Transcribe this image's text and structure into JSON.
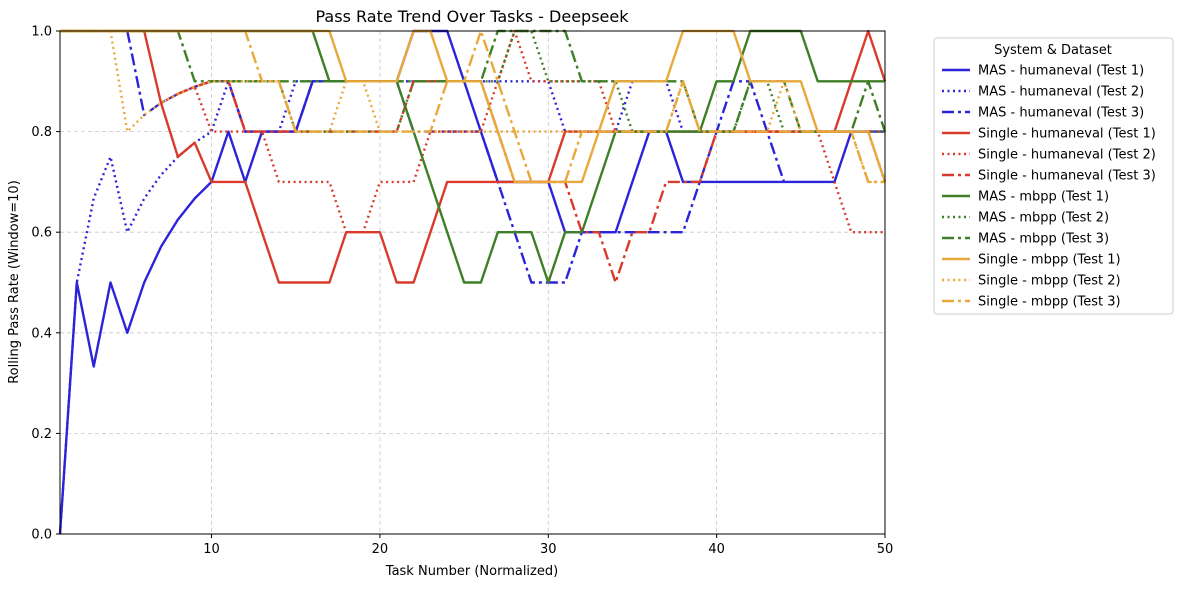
{
  "chart_data": {
    "type": "line",
    "title": "Pass Rate Trend Over Tasks - Deepseek",
    "xlabel": "Task Number (Normalized)",
    "ylabel": "Rolling Pass Rate (Window=10)",
    "xlim": [
      1,
      50
    ],
    "ylim": [
      0,
      1.0
    ],
    "xticks": [
      10,
      20,
      30,
      40,
      50
    ],
    "yticks": [
      0.0,
      0.2,
      0.4,
      0.6,
      0.8,
      1.0
    ],
    "grid": true,
    "legend": {
      "title": "System & Dataset",
      "placement": "outside-right"
    },
    "series": [
      {
        "name": "MAS - humaneval (Test 1)",
        "color": "#2b24d9",
        "style": "solid",
        "x": [
          1,
          2,
          3,
          4,
          5,
          6,
          7,
          8,
          9,
          10,
          11,
          12,
          13,
          14,
          15,
          16,
          17,
          18,
          19,
          20,
          21,
          22,
          23,
          24,
          25,
          26,
          27,
          28,
          29,
          30,
          31,
          32,
          33,
          34,
          35,
          36,
          37,
          38,
          39,
          40,
          41,
          42,
          43,
          44,
          45,
          46,
          47,
          48,
          49,
          50
        ],
        "y": [
          0,
          0.5,
          0.333,
          0.5,
          0.4,
          0.5,
          0.571,
          0.625,
          0.667,
          0.7,
          0.8,
          0.7,
          0.8,
          0.8,
          0.8,
          0.9,
          0.9,
          0.9,
          0.9,
          0.9,
          0.9,
          1.0,
          1.0,
          1.0,
          0.9,
          0.8,
          0.7,
          0.7,
          0.7,
          0.7,
          0.6,
          0.6,
          0.6,
          0.6,
          0.7,
          0.8,
          0.8,
          0.7,
          0.7,
          0.7,
          0.7,
          0.7,
          0.7,
          0.7,
          0.7,
          0.7,
          0.7,
          0.8,
          0.8,
          0.8
        ]
      },
      {
        "name": "MAS - humaneval (Test 2)",
        "color": "#2b24d9",
        "style": "dotted",
        "x": [
          1,
          2,
          3,
          4,
          5,
          6,
          7,
          8,
          9,
          10,
          11,
          12,
          13,
          14,
          15,
          16,
          17,
          18,
          19,
          20,
          21,
          22,
          23,
          24,
          25,
          26,
          27,
          28,
          29,
          30,
          31,
          32,
          33,
          34,
          35,
          36,
          37,
          38,
          39,
          40,
          41,
          42,
          43,
          44,
          45,
          46,
          47,
          48,
          49,
          50
        ],
        "y": [
          0,
          0.5,
          0.667,
          0.75,
          0.6,
          0.667,
          0.714,
          0.75,
          0.778,
          0.8,
          0.9,
          0.8,
          0.8,
          0.8,
          0.9,
          0.9,
          0.9,
          0.9,
          0.9,
          0.9,
          0.9,
          0.9,
          0.9,
          0.9,
          0.9,
          0.9,
          0.9,
          0.9,
          0.9,
          0.9,
          0.8,
          0.8,
          0.8,
          0.8,
          0.9,
          0.9,
          0.9,
          0.8,
          0.8,
          0.8,
          0.8,
          0.8,
          0.8,
          0.8,
          0.8,
          0.8,
          0.8,
          0.8,
          0.8,
          0.7
        ]
      },
      {
        "name": "MAS - humaneval (Test 3)",
        "color": "#2b24d9",
        "style": "dashdot",
        "x": [
          5,
          6,
          7,
          8,
          9,
          10,
          11,
          12,
          13,
          14,
          15,
          16,
          17,
          18,
          19,
          20,
          21,
          22,
          23,
          24,
          25,
          26,
          27,
          28,
          29,
          30,
          31,
          32,
          33,
          34,
          35,
          36,
          37,
          38,
          39,
          40,
          41,
          42,
          43,
          44
        ],
        "y": [
          1.0,
          0.833,
          0.857,
          0.875,
          0.889,
          0.9,
          0.9,
          0.8,
          0.8,
          0.8,
          0.8,
          0.9,
          0.9,
          0.9,
          0.9,
          0.9,
          0.9,
          0.8,
          0.8,
          0.8,
          0.8,
          0.8,
          0.7,
          0.6,
          0.5,
          0.5,
          0.5,
          0.6,
          0.6,
          0.6,
          0.6,
          0.6,
          0.6,
          0.6,
          0.7,
          0.8,
          0.9,
          0.9,
          0.8,
          0.7
        ]
      },
      {
        "name": "Single - humaneval (Test 1)",
        "color": "#d93a2b",
        "style": "solid",
        "x": [
          5,
          6,
          7,
          8,
          9,
          10,
          11,
          12,
          13,
          14,
          15,
          16,
          17,
          18,
          19,
          20,
          21,
          22,
          23,
          24,
          25,
          26,
          27,
          28,
          29,
          30,
          31,
          32,
          33,
          34,
          35,
          36,
          37,
          38,
          39,
          40,
          41,
          42,
          43,
          44,
          45,
          46,
          47,
          48,
          49,
          50
        ],
        "y": [
          1.0,
          1.0,
          0.857,
          0.75,
          0.778,
          0.7,
          0.7,
          0.7,
          0.6,
          0.5,
          0.5,
          0.5,
          0.5,
          0.6,
          0.6,
          0.6,
          0.5,
          0.5,
          0.6,
          0.7,
          0.7,
          0.7,
          0.7,
          0.7,
          0.7,
          0.7,
          0.8,
          0.8,
          0.8,
          0.8,
          0.8,
          0.8,
          0.8,
          0.8,
          0.8,
          0.8,
          0.8,
          0.8,
          0.8,
          0.8,
          0.8,
          0.8,
          0.8,
          0.9,
          1.0,
          0.9
        ]
      },
      {
        "name": "Single - humaneval (Test 2)",
        "color": "#d93a2b",
        "style": "dotted",
        "x": [
          7,
          8,
          9,
          10,
          11,
          12,
          13,
          14,
          15,
          16,
          17,
          18,
          19,
          20,
          21,
          22,
          23,
          24,
          25,
          26,
          27,
          28,
          29,
          30,
          31,
          32,
          33,
          34,
          35,
          36,
          37,
          38,
          39,
          40,
          41,
          42,
          43,
          44,
          45,
          46,
          47,
          48,
          49,
          50
        ],
        "y": [
          0.857,
          0.875,
          0.889,
          0.8,
          0.8,
          0.8,
          0.8,
          0.7,
          0.7,
          0.7,
          0.7,
          0.6,
          0.6,
          0.7,
          0.7,
          0.7,
          0.8,
          0.8,
          0.8,
          0.8,
          0.9,
          1.0,
          0.9,
          0.9,
          0.9,
          0.9,
          0.9,
          0.8,
          0.8,
          0.8,
          0.8,
          0.8,
          0.8,
          0.8,
          0.8,
          0.8,
          0.8,
          0.8,
          0.8,
          0.8,
          0.7,
          0.6,
          0.6,
          0.6
        ]
      },
      {
        "name": "Single - humaneval (Test 3)",
        "color": "#d93a2b",
        "style": "dashdot",
        "x": [
          8,
          9,
          10,
          11,
          12,
          13,
          14,
          15,
          16,
          17,
          18,
          19,
          20,
          21,
          22,
          23,
          24,
          25,
          26,
          27,
          28,
          29,
          30,
          31,
          32,
          33,
          34,
          35,
          36,
          37,
          38,
          39,
          40,
          41,
          42,
          43,
          44,
          45,
          46,
          47,
          48,
          49,
          50
        ],
        "y": [
          0.875,
          0.889,
          0.9,
          0.9,
          0.8,
          0.8,
          0.8,
          0.8,
          0.8,
          0.8,
          0.8,
          0.8,
          0.8,
          0.8,
          0.9,
          0.9,
          0.9,
          0.9,
          0.9,
          0.8,
          0.7,
          0.7,
          0.7,
          0.7,
          0.6,
          0.6,
          0.5,
          0.6,
          0.6,
          0.7,
          0.7,
          0.7,
          0.8,
          0.8,
          0.8,
          0.8,
          0.8,
          0.8,
          0.8,
          0.8,
          0.8,
          0.8,
          0.8
        ]
      },
      {
        "name": "MAS - mbpp (Test 1)",
        "color": "#3f7f27",
        "style": "solid",
        "x": [
          1,
          2,
          3,
          4,
          5,
          6,
          7,
          8,
          9,
          10,
          11,
          12,
          13,
          14,
          15,
          16,
          17,
          18,
          19,
          20,
          21,
          22,
          23,
          24,
          25,
          26,
          27,
          28,
          29,
          30,
          31,
          32,
          33,
          34,
          35,
          36,
          37,
          38,
          39,
          40,
          41,
          42,
          43,
          44,
          45,
          46,
          47,
          48,
          49,
          50
        ],
        "y": [
          1.0,
          1.0,
          1.0,
          1.0,
          1.0,
          1.0,
          1.0,
          1.0,
          1.0,
          1.0,
          1.0,
          1.0,
          1.0,
          1.0,
          1.0,
          1.0,
          0.9,
          0.9,
          0.9,
          0.9,
          0.9,
          0.8,
          0.7,
          0.6,
          0.5,
          0.5,
          0.6,
          0.6,
          0.6,
          0.5,
          0.6,
          0.6,
          0.7,
          0.8,
          0.8,
          0.8,
          0.8,
          0.8,
          0.8,
          0.9,
          0.9,
          1.0,
          1.0,
          1.0,
          1.0,
          0.9,
          0.9,
          0.9,
          0.9,
          0.9
        ]
      },
      {
        "name": "MAS - mbpp (Test 2)",
        "color": "#3f7f27",
        "style": "dotted",
        "x": [
          10,
          11,
          12,
          13,
          14,
          15,
          16,
          17,
          18,
          19,
          20,
          21,
          22,
          23,
          24,
          25,
          26,
          27,
          28,
          29,
          30,
          31,
          32,
          33,
          34,
          35,
          36,
          37,
          38,
          39,
          40,
          41,
          42,
          43,
          44,
          45,
          46,
          47,
          48,
          49,
          50
        ],
        "y": [
          0.9,
          0.9,
          0.9,
          0.9,
          0.9,
          0.8,
          0.8,
          0.8,
          0.8,
          0.8,
          0.8,
          0.8,
          0.9,
          0.9,
          0.9,
          0.9,
          0.9,
          0.9,
          1.0,
          1.0,
          0.9,
          0.9,
          0.9,
          0.9,
          0.9,
          0.8,
          0.8,
          0.8,
          0.8,
          0.8,
          0.8,
          0.8,
          0.9,
          0.9,
          0.8,
          0.8,
          0.8,
          0.8,
          0.8,
          0.8,
          0.8
        ]
      },
      {
        "name": "MAS - mbpp (Test 3)",
        "color": "#3f7f27",
        "style": "dashdot",
        "x": [
          1,
          2,
          3,
          4,
          5,
          6,
          7,
          8,
          9,
          10,
          11,
          12,
          13,
          14,
          15,
          16,
          17,
          18,
          19,
          20,
          21,
          22,
          23,
          24,
          25,
          26,
          27,
          28,
          29,
          30,
          31,
          32,
          33,
          34,
          35,
          36,
          37,
          38,
          39,
          40,
          41,
          42,
          43,
          44,
          45,
          46,
          47,
          48,
          49,
          50
        ],
        "y": [
          1.0,
          1.0,
          1.0,
          1.0,
          1.0,
          1.0,
          1.0,
          1.0,
          0.9,
          0.9,
          0.9,
          0.9,
          0.9,
          0.9,
          0.9,
          0.9,
          0.9,
          0.9,
          0.9,
          0.9,
          0.9,
          0.9,
          0.9,
          0.9,
          0.9,
          0.9,
          1.0,
          1.0,
          1.0,
          1.0,
          1.0,
          0.9,
          0.9,
          0.9,
          0.9,
          0.9,
          0.9,
          0.9,
          0.8,
          0.8,
          0.8,
          0.9,
          0.9,
          0.9,
          0.8,
          0.8,
          0.8,
          0.8,
          0.9,
          0.8
        ]
      },
      {
        "name": "Single - mbpp (Test 1)",
        "color": "#e8a83a",
        "style": "solid",
        "x": [
          1,
          2,
          3,
          4,
          5,
          6,
          7,
          8,
          9,
          10,
          11,
          12,
          13,
          14,
          15,
          16,
          17,
          18,
          19,
          20,
          21,
          22,
          23,
          24,
          25,
          26,
          27,
          28,
          29,
          30,
          31,
          32,
          33,
          34,
          35,
          36,
          37,
          38,
          39,
          40,
          41,
          42,
          43,
          44,
          45,
          46,
          47,
          48,
          49,
          50
        ],
        "y": [
          1.0,
          1.0,
          1.0,
          1.0,
          1.0,
          1.0,
          1.0,
          1.0,
          1.0,
          1.0,
          1.0,
          1.0,
          1.0,
          1.0,
          1.0,
          1.0,
          1.0,
          0.9,
          0.9,
          0.9,
          0.9,
          1.0,
          1.0,
          0.9,
          0.9,
          0.9,
          0.8,
          0.7,
          0.7,
          0.7,
          0.7,
          0.7,
          0.8,
          0.9,
          0.9,
          0.9,
          0.9,
          1.0,
          1.0,
          1.0,
          1.0,
          0.9,
          0.9,
          0.9,
          0.9,
          0.8,
          0.8,
          0.8,
          0.8,
          0.7
        ]
      },
      {
        "name": "Single - mbpp (Test 2)",
        "color": "#e8a83a",
        "style": "dotted",
        "x": [
          3,
          4,
          5,
          6,
          7,
          8,
          9,
          10,
          11,
          12,
          13,
          14,
          15,
          16,
          17,
          18,
          19,
          20,
          21,
          22,
          23,
          24,
          25,
          26,
          27,
          28,
          29,
          30,
          31,
          32,
          33,
          34,
          35,
          36,
          37,
          38,
          39,
          40,
          41,
          42,
          43,
          44,
          45,
          46,
          47,
          48,
          49,
          50
        ],
        "y": [
          1.0,
          1.0,
          0.8,
          0.833,
          0.857,
          0.875,
          0.889,
          0.9,
          0.9,
          0.9,
          0.9,
          0.9,
          0.8,
          0.8,
          0.8,
          0.9,
          0.9,
          0.8,
          0.8,
          0.8,
          0.8,
          0.8,
          0.8,
          0.8,
          0.8,
          0.8,
          0.8,
          0.8,
          0.8,
          0.8,
          0.8,
          0.8,
          0.8,
          0.8,
          0.8,
          0.9,
          0.8,
          0.8,
          0.8,
          0.8,
          0.8,
          0.9,
          0.8,
          0.8,
          0.8,
          0.8,
          0.7,
          0.7
        ]
      },
      {
        "name": "Single - mbpp (Test 3)",
        "color": "#e8a83a",
        "style": "dashdot",
        "x": [
          1,
          2,
          3,
          4,
          5,
          6,
          7,
          8,
          9,
          10,
          11,
          12,
          13,
          14,
          15,
          16,
          17,
          18,
          19,
          20,
          21,
          22,
          23,
          24,
          25,
          26,
          27,
          28,
          29,
          30,
          31,
          32,
          33,
          34,
          35,
          36,
          37,
          38,
          39,
          40,
          41,
          42,
          43,
          44,
          45,
          46,
          47,
          48,
          49,
          50
        ],
        "y": [
          1.0,
          1.0,
          1.0,
          1.0,
          1.0,
          1.0,
          1.0,
          1.0,
          1.0,
          1.0,
          1.0,
          1.0,
          0.9,
          0.9,
          0.8,
          0.8,
          0.8,
          0.8,
          0.8,
          0.8,
          0.8,
          0.8,
          0.8,
          0.9,
          0.9,
          1.0,
          0.9,
          0.8,
          0.7,
          0.7,
          0.7,
          0.8,
          0.8,
          0.8,
          0.8,
          0.8,
          0.8,
          0.9,
          0.8,
          0.8,
          0.8,
          0.8,
          0.8,
          0.8,
          0.8,
          0.8,
          0.8,
          0.8,
          0.7,
          0.7
        ]
      }
    ]
  }
}
